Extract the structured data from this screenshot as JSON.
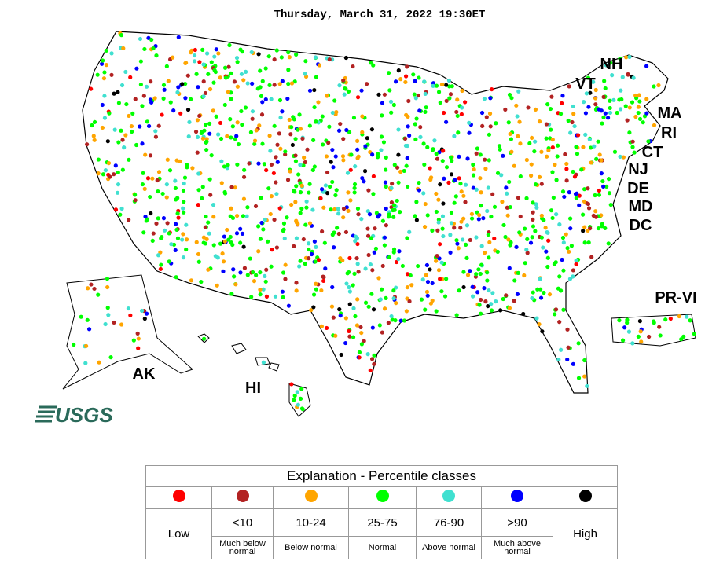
{
  "header": {
    "title": "Thursday, March 31, 2022 19:30ET"
  },
  "map": {
    "state_labels": [
      "NH",
      "VT",
      "MA",
      "RI",
      "CT",
      "NJ",
      "DE",
      "MD",
      "DC",
      "PR-VI",
      "AK",
      "HI"
    ],
    "logo": "USGS"
  },
  "legend": {
    "title": "Explanation - Percentile classes",
    "classes": [
      {
        "color": "#ff0000",
        "range": "Low"
      },
      {
        "color": "#b22222",
        "range": "<10",
        "description": "Much below normal"
      },
      {
        "color": "#ffa500",
        "range": "10-24",
        "description": "Below normal"
      },
      {
        "color": "#00ff00",
        "range": "25-75",
        "description": "Normal"
      },
      {
        "color": "#40e0d0",
        "range": "76-90",
        "description": "Above normal"
      },
      {
        "color": "#0000ff",
        "range": ">90",
        "description": "Much above normal"
      },
      {
        "color": "#000000",
        "range": "High"
      }
    ]
  }
}
